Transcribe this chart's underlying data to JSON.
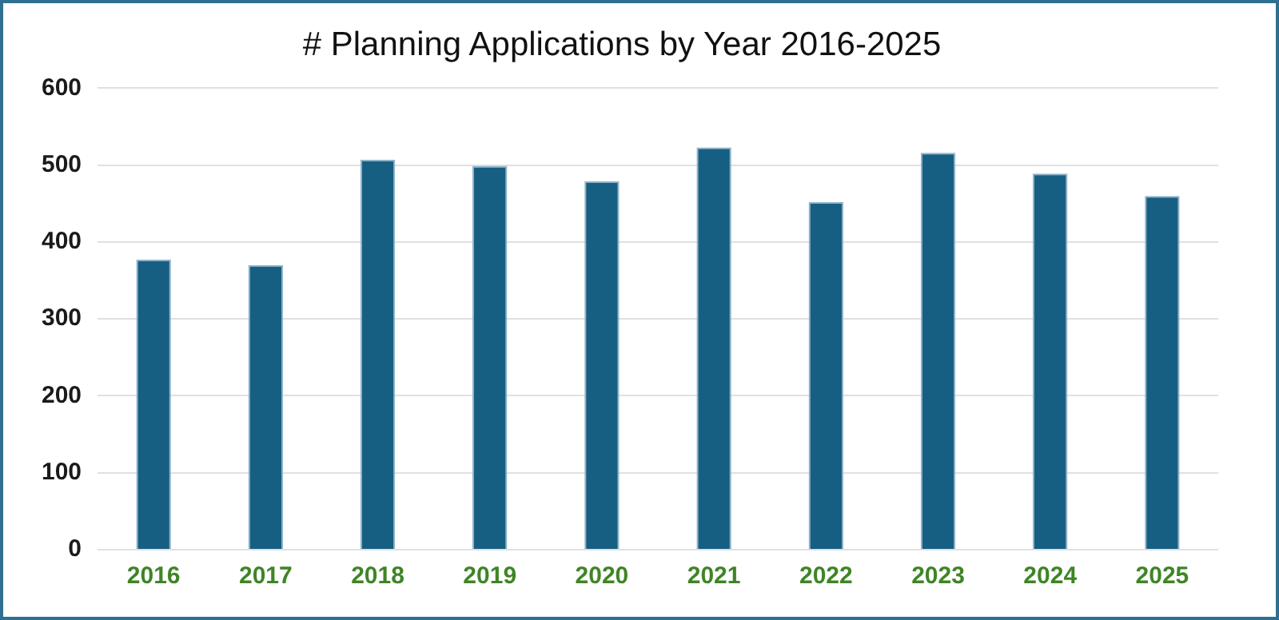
{
  "chart_data": {
    "type": "bar",
    "title": "# Planning Applications by Year 2016-2025",
    "categories": [
      "2016",
      "2017",
      "2018",
      "2019",
      "2020",
      "2021",
      "2022",
      "2023",
      "2024",
      "2025"
    ],
    "values": [
      377,
      370,
      507,
      499,
      479,
      523,
      452,
      516,
      489,
      460
    ],
    "color": "#175f82",
    "ylim": [
      0,
      600
    ],
    "yticks": [
      0,
      100,
      200,
      300,
      400,
      500,
      600
    ],
    "grid": "y"
  }
}
